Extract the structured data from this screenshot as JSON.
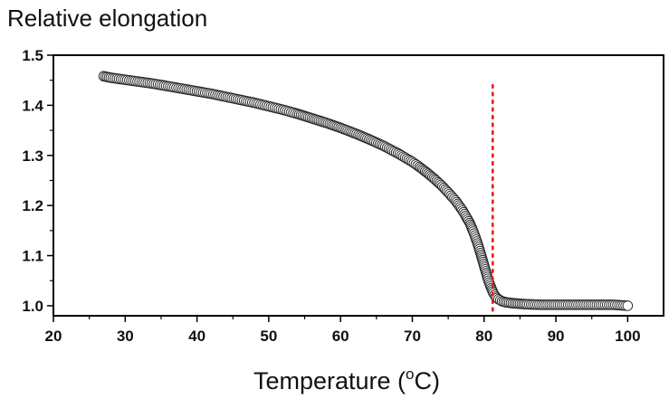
{
  "chart_data": {
    "type": "scatter",
    "title": "",
    "ylabel": "Relative elongation",
    "xlabel_prefix": "Temperature (",
    "xlabel_sup": "o",
    "xlabel_suffix": "C)",
    "xlim": [
      20,
      105
    ],
    "ylim": [
      0.98,
      1.5
    ],
    "x_ticks": [
      20,
      30,
      40,
      50,
      60,
      70,
      80,
      90,
      100
    ],
    "x_tick_labels": [
      "20",
      "30",
      "40",
      "50",
      "60",
      "70",
      "80",
      "90",
      "100"
    ],
    "y_ticks": [
      1.0,
      1.1,
      1.2,
      1.3,
      1.4,
      1.5
    ],
    "y_tick_labels": [
      "1.0",
      "1.1",
      "1.2",
      "1.3",
      "1.4",
      "1.5"
    ],
    "grid": false,
    "series": [
      {
        "marker": "open-circle",
        "x": [
          27,
          28,
          30,
          32,
          34,
          36,
          38,
          40,
          42,
          44,
          46,
          48,
          50,
          52,
          54,
          56,
          58,
          60,
          62,
          64,
          66,
          68,
          70,
          71,
          72,
          73,
          74,
          75,
          76,
          77,
          78,
          78.5,
          79,
          79.5,
          80,
          80.3,
          80.6,
          81,
          81.3,
          81.6,
          82,
          82.5,
          83,
          84,
          85,
          86,
          88,
          90,
          92,
          94,
          96,
          98,
          100
        ],
        "y": [
          1.458,
          1.455,
          1.451,
          1.447,
          1.443,
          1.438,
          1.433,
          1.428,
          1.423,
          1.417,
          1.411,
          1.405,
          1.398,
          1.391,
          1.383,
          1.374,
          1.365,
          1.355,
          1.344,
          1.332,
          1.319,
          1.304,
          1.287,
          1.277,
          1.266,
          1.254,
          1.241,
          1.226,
          1.21,
          1.19,
          1.165,
          1.148,
          1.128,
          1.105,
          1.08,
          1.065,
          1.05,
          1.035,
          1.025,
          1.018,
          1.013,
          1.009,
          1.007,
          1.005,
          1.004,
          1.003,
          1.002,
          1.002,
          1.002,
          1.002,
          1.002,
          1.002,
          1.0
        ]
      }
    ],
    "reference_line": {
      "orientation": "vertical",
      "x": 81.2,
      "y_top": 1.44,
      "color": "#e02020",
      "style": "dotted"
    },
    "colors": {
      "marker_stroke": "#222222",
      "marker_fill": "#ffffff",
      "axis": "#000000"
    }
  }
}
